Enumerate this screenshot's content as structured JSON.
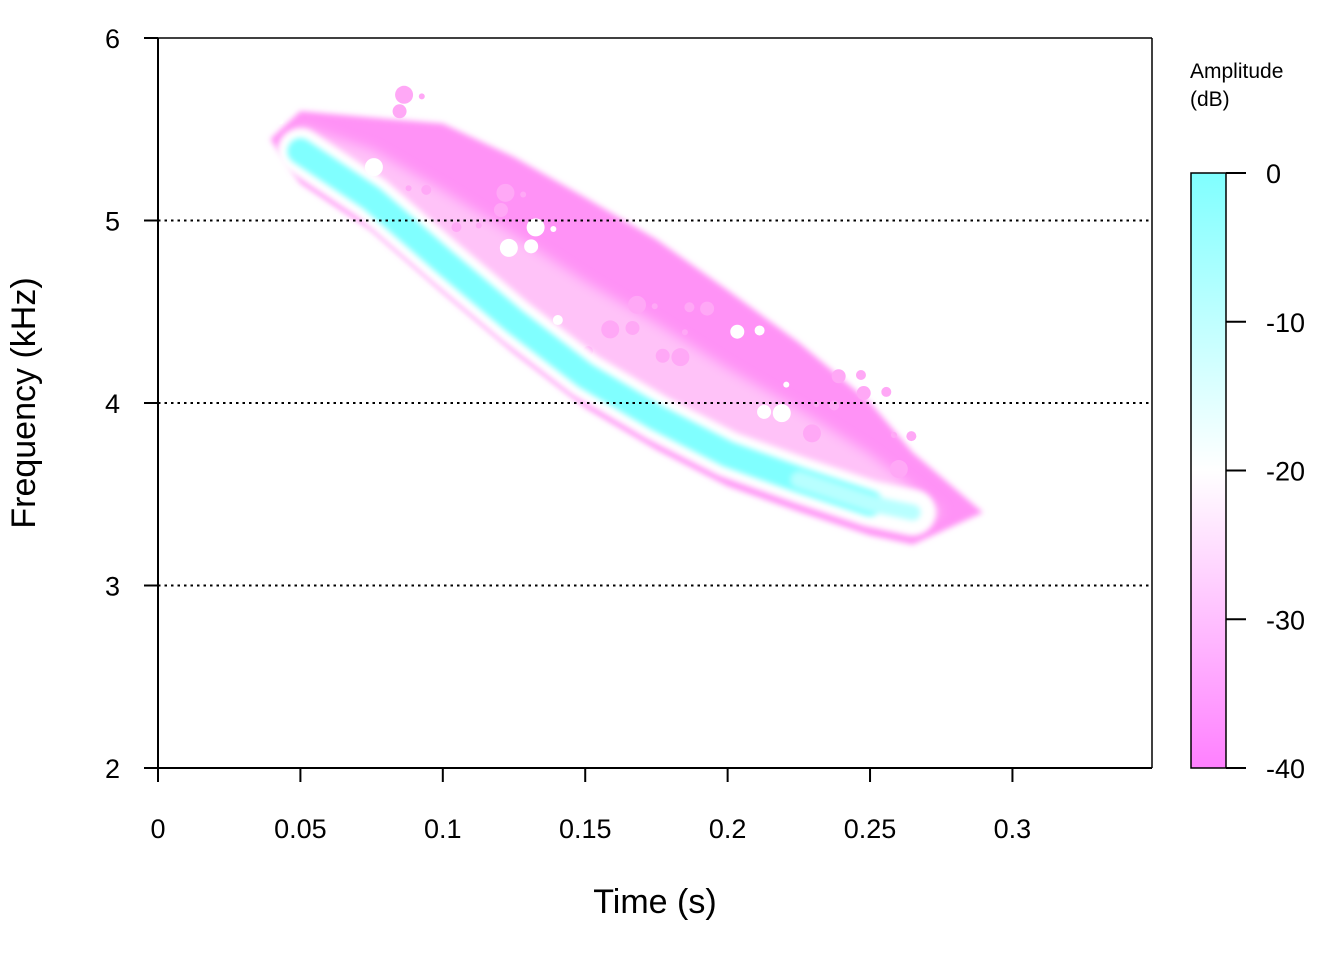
{
  "chart_data": {
    "type": "heatmap",
    "subtype": "spectrogram",
    "xlabel": "Time (s)",
    "ylabel": "Frequency (kHz)",
    "xlim": [
      0,
      0.349
    ],
    "ylim": [
      2,
      6
    ],
    "xticks": [
      0,
      0.05,
      0.1,
      0.15,
      0.2,
      0.25,
      0.3
    ],
    "xtick_labels": [
      "0",
      "0.05",
      "0.1",
      "0.15",
      "0.2",
      "0.25",
      "0.3"
    ],
    "yticks": [
      2,
      3,
      4,
      5,
      6
    ],
    "ytick_labels": [
      "2",
      "3",
      "4",
      "5",
      "6"
    ],
    "grid": {
      "horizontal_dotted_at": [
        3,
        4,
        5,
        6
      ]
    },
    "colorbar": {
      "title_lines": [
        "Amplitude",
        "(dB)"
      ],
      "range": [
        -40,
        0
      ],
      "ticks": [
        0,
        -10,
        -20,
        -30,
        -40
      ],
      "tick_labels": [
        "0",
        "-10",
        "-20",
        "-30",
        "-40"
      ],
      "colors": {
        "high": "#80FFFF",
        "mid": "#FFFFFF",
        "low": "#FF80FF"
      },
      "position": "right"
    },
    "signal": {
      "description_of_ridge": "downward frequency sweep",
      "ridge_time_s": [
        0.05,
        0.075,
        0.1,
        0.125,
        0.15,
        0.175,
        0.2,
        0.225,
        0.25,
        0.265
      ],
      "ridge_freq_khz": [
        5.38,
        5.12,
        4.78,
        4.45,
        4.15,
        3.92,
        3.72,
        3.58,
        3.45,
        3.4
      ],
      "peak_db": 0,
      "floor_db": -40
    }
  }
}
